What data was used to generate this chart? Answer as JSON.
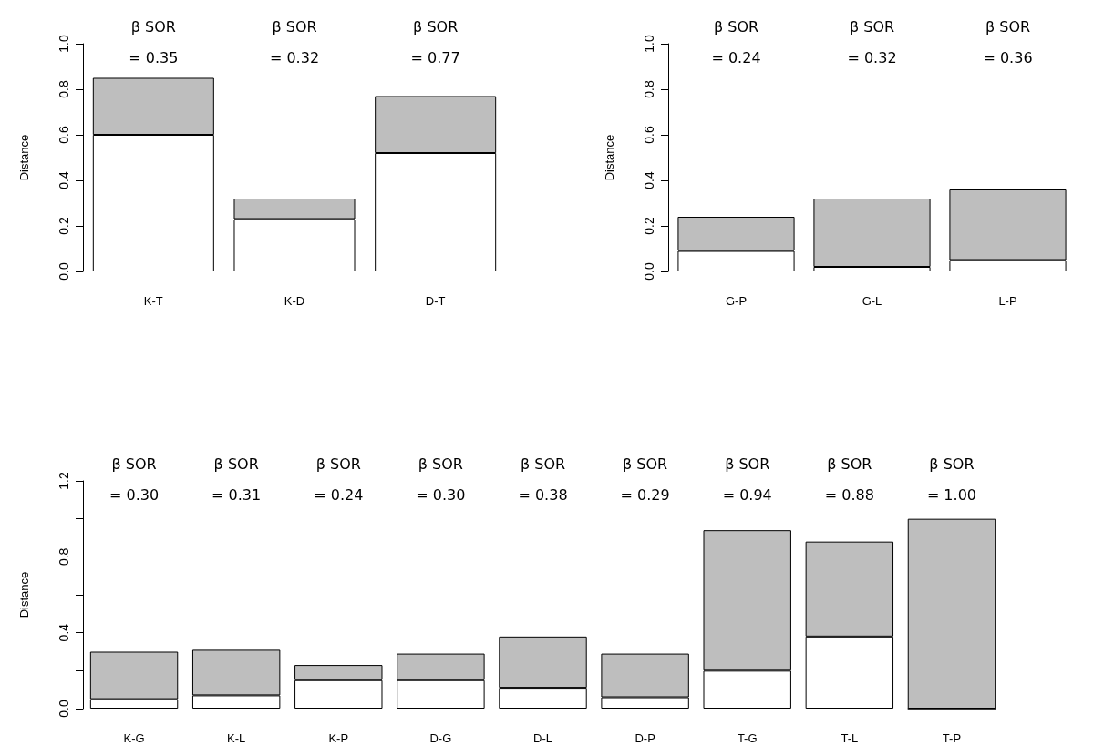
{
  "chart_data": [
    {
      "type": "bar",
      "stacked": true,
      "ylabel": "Distance",
      "categories": [
        "K-T",
        "K-D",
        "D-T"
      ],
      "series": [
        {
          "color": "#ffffff",
          "values": [
            0.6,
            0.23,
            0.52
          ]
        },
        {
          "color": "#bebebe",
          "values": [
            0.25,
            0.09,
            0.25
          ]
        }
      ],
      "ylim": [
        0,
        1
      ],
      "yticks": [
        {
          "value": 0,
          "label": "0.0"
        },
        {
          "value": 0.2,
          "label": "0.2"
        },
        {
          "value": 0.4,
          "label": "0.4"
        },
        {
          "value": 0.6,
          "label": "0.6"
        },
        {
          "value": 0.8,
          "label": "0.8"
        },
        {
          "value": 1,
          "label": "1.0"
        }
      ],
      "annotations": [
        "β SOR\n= 0.35",
        "β SOR\n= 0.32",
        "β SOR\n= 0.77"
      ]
    },
    {
      "type": "bar",
      "stacked": true,
      "ylabel": "Distance",
      "categories": [
        "G-P",
        "G-L",
        "L-P"
      ],
      "series": [
        {
          "color": "#ffffff",
          "values": [
            0.09,
            0.02,
            0.05
          ]
        },
        {
          "color": "#bebebe",
          "values": [
            0.15,
            0.3,
            0.31
          ]
        }
      ],
      "ylim": [
        0,
        1
      ],
      "yticks": [
        {
          "value": 0,
          "label": "0.0"
        },
        {
          "value": 0.2,
          "label": "0.2"
        },
        {
          "value": 0.4,
          "label": "0.4"
        },
        {
          "value": 0.6,
          "label": "0.6"
        },
        {
          "value": 0.8,
          "label": "0.8"
        },
        {
          "value": 1,
          "label": "1.0"
        }
      ],
      "annotations": [
        "β SOR\n= 0.24",
        "β SOR\n= 0.32",
        "β SOR\n= 0.36"
      ]
    },
    {
      "type": "bar",
      "stacked": true,
      "ylabel": "Distance",
      "categories": [
        "K-G",
        "K-L",
        "K-P",
        "D-G",
        "D-L",
        "D-P",
        "T-G",
        "T-L",
        "T-P"
      ],
      "series": [
        {
          "color": "#ffffff",
          "values": [
            0.05,
            0.07,
            0.15,
            0.15,
            0.11,
            0.06,
            0.2,
            0.38,
            0
          ]
        },
        {
          "color": "#bebebe",
          "values": [
            0.25,
            0.24,
            0.08,
            0.14,
            0.27,
            0.23,
            0.74,
            0.5,
            1.0
          ]
        }
      ],
      "ylim": [
        0,
        1.2
      ],
      "yticks": [
        {
          "value": 0,
          "label": "0.0"
        },
        {
          "value": 0.2,
          "label": null
        },
        {
          "value": 0.4,
          "label": "0.4"
        },
        {
          "value": 0.6,
          "label": null
        },
        {
          "value": 0.8,
          "label": "0.8"
        },
        {
          "value": 1,
          "label": null
        },
        {
          "value": 1.2,
          "label": "1.2"
        }
      ],
      "annotations": [
        "β SOR\n= 0.30",
        "β SOR\n= 0.31",
        "β SOR\n= 0.24",
        "β SOR\n= 0.30",
        "β SOR\n= 0.38",
        "β SOR\n= 0.29",
        "β SOR\n= 0.94",
        "β SOR\n= 0.88",
        "β SOR\n= 1.00"
      ]
    }
  ]
}
